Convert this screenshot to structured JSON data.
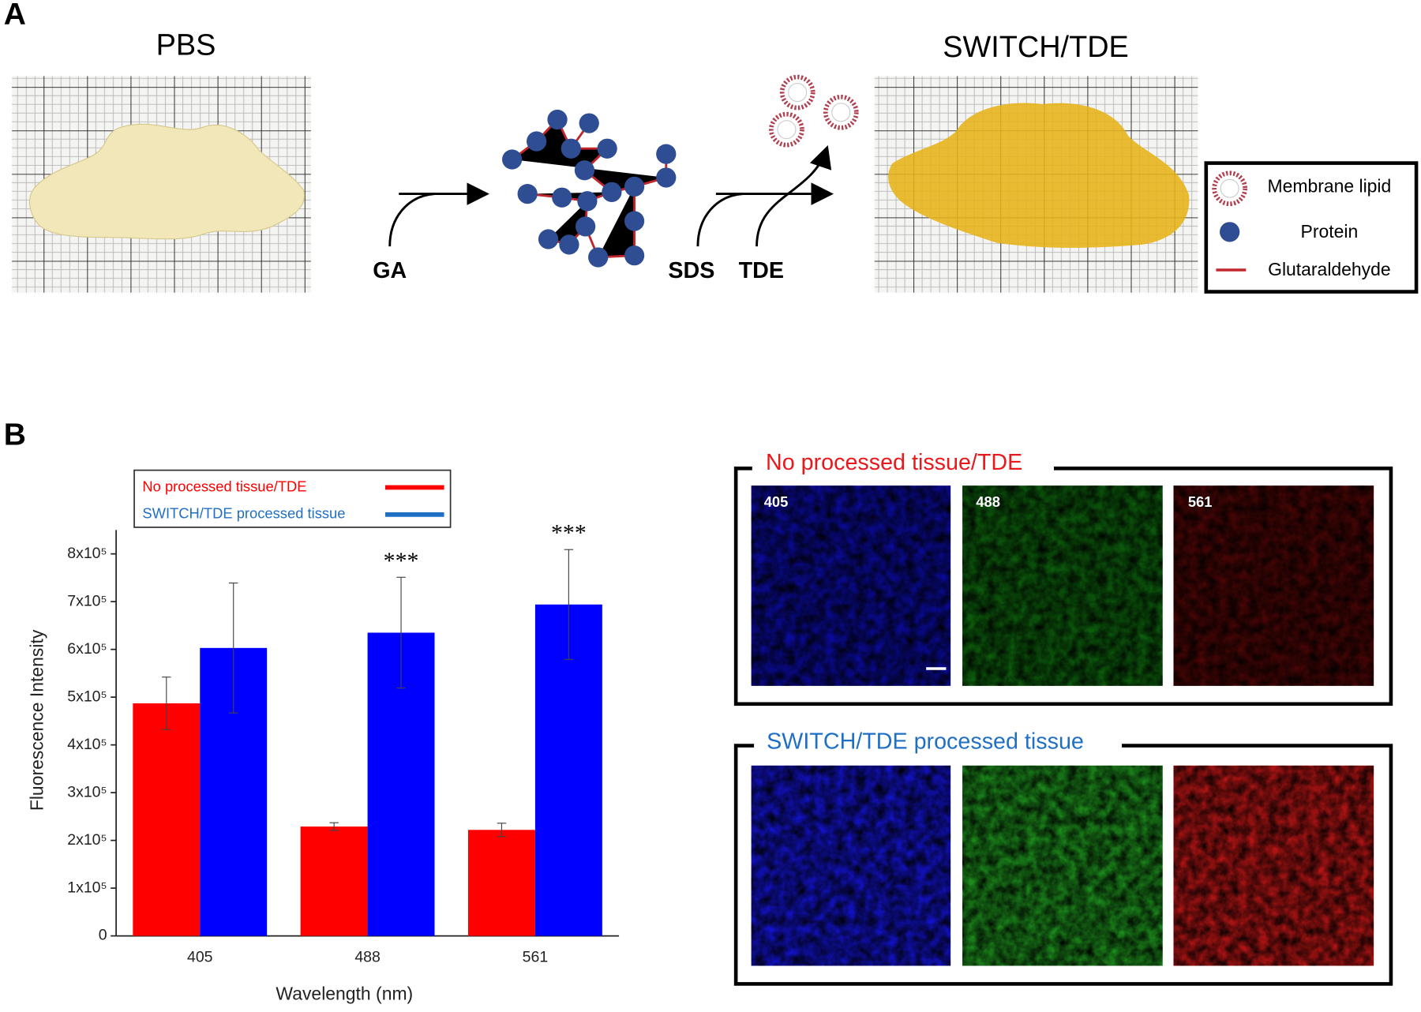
{
  "panel_a": {
    "label": "A",
    "left_title": "PBS",
    "right_title": "SWITCH/TDE",
    "reagents": [
      "GA",
      "SDS",
      "TDE"
    ],
    "legend": [
      "Membrane lipid",
      "Protein",
      "Glutaraldehyde"
    ]
  },
  "panel_b": {
    "label": "B"
  },
  "chart_data": {
    "type": "bar",
    "x_label": "Wavelength (nm)",
    "y_label": "Fluorescence Intensity",
    "categories": [
      "405",
      "488",
      "561"
    ],
    "series": [
      {
        "name": "No processed tissue/TDE",
        "color": "#ff0000",
        "values": [
          487000,
          229000,
          222000
        ],
        "errors": [
          55000,
          8000,
          14000
        ]
      },
      {
        "name": "SWITCH/TDE processed tissue",
        "color": "#0000ff",
        "values": [
          603000,
          635000,
          694000
        ],
        "errors": [
          136000,
          116000,
          115000
        ]
      }
    ],
    "significance": [
      null,
      "***",
      "***"
    ],
    "ylim": [
      0,
      850000
    ],
    "yticks": [
      0,
      {
        "value": 100000,
        "label": "1x10⁵"
      },
      {
        "value": 200000,
        "label": "2x10⁵"
      },
      {
        "value": 300000,
        "label": "3x10⁵"
      },
      {
        "value": 400000,
        "label": "4x10⁵"
      },
      {
        "value": 500000,
        "label": "5x10⁵"
      },
      {
        "value": 600000,
        "label": "6x10⁵"
      },
      {
        "value": 700000,
        "label": "7x10⁵"
      },
      {
        "value": 800000,
        "label": "8x10⁵"
      }
    ],
    "legend_colors": [
      "#ff0000",
      "#1f6fc5"
    ]
  },
  "microscopy": {
    "panels": [
      {
        "title": "No processed tissue/TDE",
        "channels": [
          "405",
          "488",
          "561"
        ]
      },
      {
        "title": "SWITCH/TDE processed tissue"
      }
    ]
  }
}
